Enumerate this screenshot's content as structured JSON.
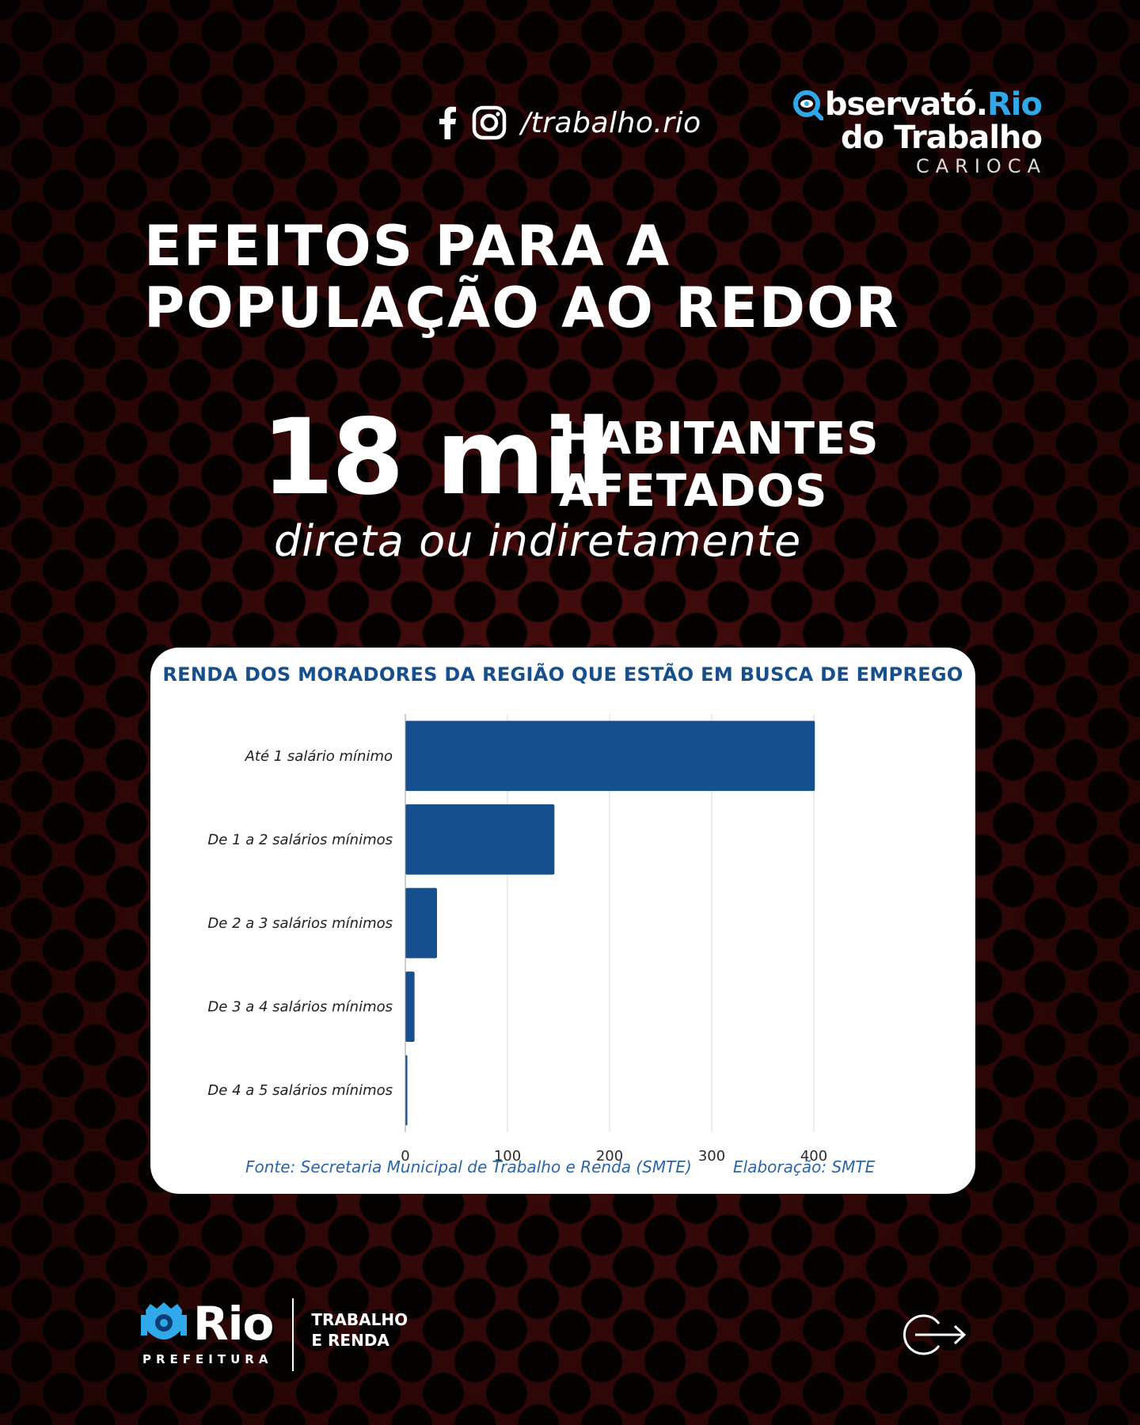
{
  "header": {
    "handle": "/trabalho.rio",
    "brand": {
      "line1_a": "bservató.",
      "line1_b": "Rio",
      "line2": "do Trabalho",
      "line3": "CARIOCA"
    }
  },
  "title": {
    "line1": "EFEITOS PARA A",
    "line2": "POPULAÇÃO AO REDOR"
  },
  "stat": {
    "number": "18 mil",
    "label_line1": "HABITANTES",
    "label_line2": "AFETADOS",
    "sub": "direta ou indiretamente"
  },
  "chart_data": {
    "type": "bar",
    "orientation": "horizontal",
    "title": "RENDA DOS MORADORES DA REGIÃO QUE ESTÃO EM BUSCA DE EMPREGO",
    "categories": [
      "Até 1 salário mínimo",
      "De 1 a 2 salários mínimos",
      "De 2 a 3 salários mínimos",
      "De 3 a 4 salários mínimos",
      "De 4 a 5 salários mínimos"
    ],
    "values": [
      401,
      146,
      31,
      9,
      2
    ],
    "xlim": [
      0,
      400
    ],
    "xticks": [
      0,
      100,
      200,
      300,
      400
    ],
    "grid": true,
    "bar_color": "#154f8e",
    "source": "Fonte: Secretaria Municipal de Trabalho e Renda (SMTE)",
    "credit": "Elaboração: SMTE"
  },
  "footer": {
    "logo_word": "Rio",
    "logo_sub": "PREFEITURA",
    "dept_line1": "TRABALHO",
    "dept_line2": "E RENDA"
  },
  "colors": {
    "accent": "#2fa9ea",
    "chart_blue": "#154f8e",
    "background": "#2e0707"
  }
}
